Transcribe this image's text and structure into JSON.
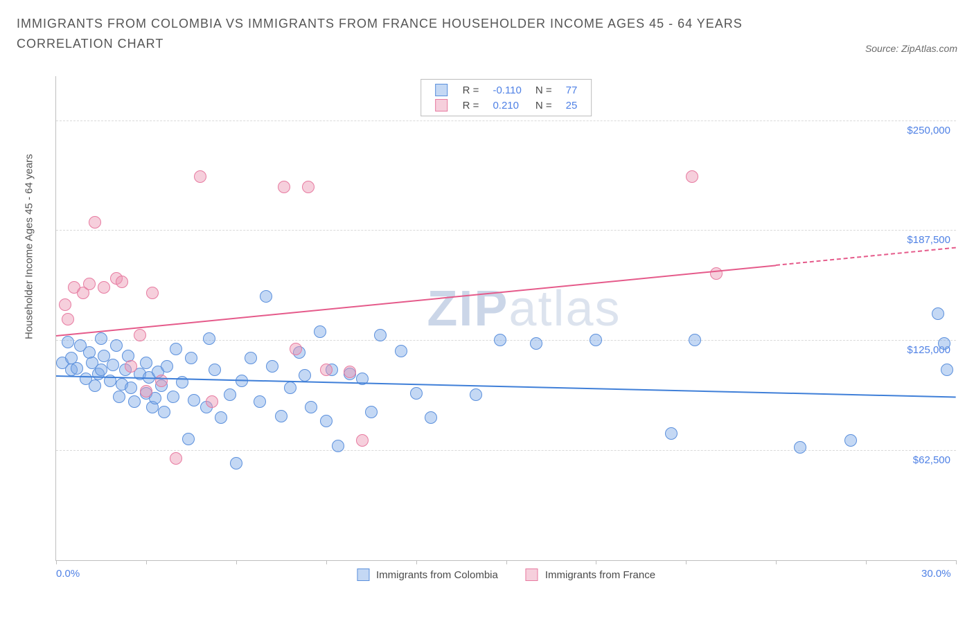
{
  "title": "IMMIGRANTS FROM COLOMBIA VS IMMIGRANTS FROM FRANCE HOUSEHOLDER INCOME AGES 45 - 64 YEARS CORRELATION CHART",
  "source": "Source: ZipAtlas.com",
  "watermark_a": "ZIP",
  "watermark_b": "atlas",
  "chart": {
    "type": "scatter",
    "background_color": "#ffffff",
    "grid_color": "#d9d9d9",
    "axis_color": "#bfbfbf",
    "y_axis_title": "Householder Income Ages 45 - 64 years",
    "y_axis_title_color": "#545454",
    "tick_label_color": "#4f81e5",
    "tick_fontsize": 15,
    "xlim": [
      0,
      30
    ],
    "ylim": [
      0,
      275000
    ],
    "x_ticks_minor": [
      0,
      3,
      6,
      9,
      12,
      15,
      18,
      21,
      24,
      27,
      30
    ],
    "x_tick_labels": [
      {
        "x": 0,
        "label": "0.0%"
      },
      {
        "x": 30,
        "label": "30.0%"
      }
    ],
    "y_gridlines": [
      62500,
      125000,
      187500,
      250000
    ],
    "y_tick_labels": [
      {
        "y": 62500,
        "label": "$62,500"
      },
      {
        "y": 125000,
        "label": "$125,000"
      },
      {
        "y": 187500,
        "label": "$187,500"
      },
      {
        "y": 250000,
        "label": "$250,000"
      }
    ],
    "series": [
      {
        "key": "colombia",
        "label": "Immigrants from Colombia",
        "fill": "rgba(124,169,230,0.45)",
        "stroke": "#5a8fdc",
        "trend_color": "#3f7fd8",
        "marker_radius": 9,
        "R": "-0.110",
        "N": "77",
        "trend": {
          "x1": 0,
          "y1": 105000,
          "x2": 30,
          "y2": 93000
        },
        "points": [
          [
            0.2,
            112000
          ],
          [
            0.4,
            124000
          ],
          [
            0.5,
            108000
          ],
          [
            0.5,
            115000
          ],
          [
            0.7,
            109000
          ],
          [
            0.8,
            122000
          ],
          [
            1.0,
            103000
          ],
          [
            1.1,
            118000
          ],
          [
            1.2,
            112000
          ],
          [
            1.3,
            99000
          ],
          [
            1.4,
            106000
          ],
          [
            1.5,
            126000
          ],
          [
            1.5,
            108000
          ],
          [
            1.6,
            116000
          ],
          [
            1.8,
            102000
          ],
          [
            1.9,
            111000
          ],
          [
            2.0,
            122000
          ],
          [
            2.1,
            93000
          ],
          [
            2.2,
            100000
          ],
          [
            2.3,
            108000
          ],
          [
            2.4,
            116000
          ],
          [
            2.5,
            98000
          ],
          [
            2.6,
            90000
          ],
          [
            2.8,
            106000
          ],
          [
            3.0,
            95000
          ],
          [
            3.0,
            112000
          ],
          [
            3.1,
            104000
          ],
          [
            3.2,
            87000
          ],
          [
            3.3,
            92000
          ],
          [
            3.4,
            107000
          ],
          [
            3.5,
            99000
          ],
          [
            3.6,
            84000
          ],
          [
            3.7,
            110000
          ],
          [
            3.9,
            93000
          ],
          [
            4.0,
            120000
          ],
          [
            4.2,
            101000
          ],
          [
            4.4,
            69000
          ],
          [
            4.5,
            115000
          ],
          [
            4.6,
            91000
          ],
          [
            5.0,
            87000
          ],
          [
            5.1,
            126000
          ],
          [
            5.3,
            108000
          ],
          [
            5.5,
            81000
          ],
          [
            5.8,
            94000
          ],
          [
            6.0,
            55000
          ],
          [
            6.2,
            102000
          ],
          [
            6.5,
            115000
          ],
          [
            6.8,
            90000
          ],
          [
            7.0,
            150000
          ],
          [
            7.2,
            110000
          ],
          [
            7.5,
            82000
          ],
          [
            7.8,
            98000
          ],
          [
            8.1,
            118000
          ],
          [
            8.3,
            105000
          ],
          [
            8.5,
            87000
          ],
          [
            8.8,
            130000
          ],
          [
            9.0,
            79000
          ],
          [
            9.2,
            108000
          ],
          [
            9.4,
            65000
          ],
          [
            9.8,
            106000
          ],
          [
            10.2,
            103000
          ],
          [
            10.5,
            84000
          ],
          [
            10.8,
            128000
          ],
          [
            11.5,
            119000
          ],
          [
            12.0,
            95000
          ],
          [
            12.5,
            81000
          ],
          [
            14.0,
            94000
          ],
          [
            14.8,
            125000
          ],
          [
            16.0,
            123000
          ],
          [
            18.0,
            125000
          ],
          [
            20.5,
            72000
          ],
          [
            21.3,
            125000
          ],
          [
            24.8,
            64000
          ],
          [
            26.5,
            68000
          ],
          [
            29.4,
            140000
          ],
          [
            29.6,
            123000
          ],
          [
            29.7,
            108000
          ]
        ]
      },
      {
        "key": "france",
        "label": "Immigrants from France",
        "fill": "rgba(236,148,177,0.45)",
        "stroke": "#e77aa0",
        "trend_color": "#e55a8a",
        "marker_radius": 9,
        "R": "0.210",
        "N": "25",
        "trend": {
          "x1": 0,
          "y1": 128000,
          "x2": 24,
          "y2": 168000
        },
        "trend_dash": {
          "x1": 24,
          "y1": 168000,
          "x2": 30,
          "y2": 178000
        },
        "points": [
          [
            0.3,
            145000
          ],
          [
            0.4,
            137000
          ],
          [
            0.6,
            155000
          ],
          [
            0.9,
            152000
          ],
          [
            1.1,
            157000
          ],
          [
            1.3,
            192000
          ],
          [
            1.6,
            155000
          ],
          [
            2.0,
            160000
          ],
          [
            2.2,
            158000
          ],
          [
            2.5,
            110000
          ],
          [
            2.8,
            128000
          ],
          [
            3.0,
            96000
          ],
          [
            3.2,
            152000
          ],
          [
            3.5,
            102000
          ],
          [
            4.0,
            58000
          ],
          [
            4.8,
            218000
          ],
          [
            5.2,
            90000
          ],
          [
            7.6,
            212000
          ],
          [
            8.0,
            120000
          ],
          [
            8.4,
            212000
          ],
          [
            9.0,
            108000
          ],
          [
            9.8,
            107000
          ],
          [
            10.2,
            68000
          ],
          [
            21.2,
            218000
          ],
          [
            22.0,
            163000
          ]
        ]
      }
    ]
  },
  "legend_top": {
    "r_prefix": "R =",
    "n_prefix": "N ="
  }
}
